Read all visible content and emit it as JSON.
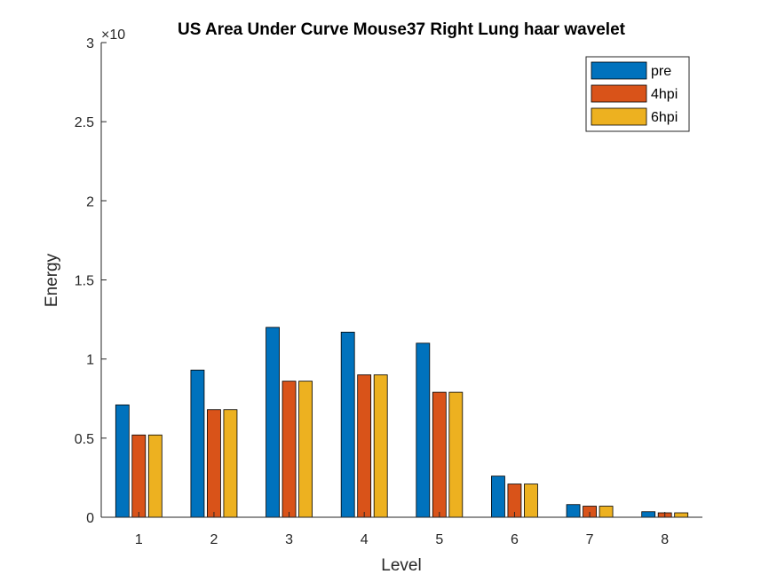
{
  "chart_data": {
    "type": "bar",
    "title": "US Area Under Curve Mouse37 Right Lung haar wavelet",
    "xlabel": "Level",
    "ylabel": "Energy",
    "y_exponent_label": "×10",
    "categories": [
      "1",
      "2",
      "3",
      "4",
      "5",
      "6",
      "7",
      "8"
    ],
    "y_ticks": [
      "0",
      "0.5",
      "1",
      "1.5",
      "2",
      "2.5",
      "3"
    ],
    "ylim": [
      0,
      3
    ],
    "legend_position": "top-right",
    "grid": false,
    "series": [
      {
        "name": "pre",
        "color": "#0072BD",
        "values": [
          0.71,
          0.93,
          1.2,
          1.17,
          1.1,
          0.26,
          0.08,
          0.035
        ]
      },
      {
        "name": "4hpi",
        "color": "#D95319",
        "values": [
          0.52,
          0.68,
          0.86,
          0.9,
          0.79,
          0.21,
          0.07,
          0.028
        ]
      },
      {
        "name": "6hpi",
        "color": "#EDB120",
        "values": [
          0.52,
          0.68,
          0.86,
          0.9,
          0.79,
          0.21,
          0.07,
          0.028
        ]
      }
    ]
  }
}
